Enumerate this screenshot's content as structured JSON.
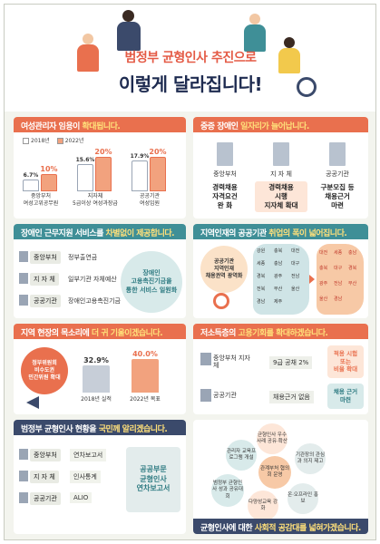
{
  "title": {
    "line1": "범정부 균형인사 추진으로",
    "line2": "이렇게 달라집니다!"
  },
  "women_managers": {
    "heading_pre": "여성관리자 임용이 ",
    "heading_hl": "확대됩니다.",
    "legend_2018": "2018년",
    "legend_2022": "2022년",
    "chart_data": {
      "type": "bar",
      "categories": [
        "중앙부처 여성고위공무원",
        "지자체 5급이상 여성과장급",
        "공공기관 여성임원"
      ],
      "series": [
        {
          "name": "2018년",
          "values": [
            6.7,
            15.6,
            17.9
          ]
        },
        {
          "name": "2022년",
          "values": [
            10,
            20,
            20
          ]
        }
      ],
      "labels_2018": [
        "6.7%",
        "15.6%",
        "17.9%"
      ],
      "labels_2022": [
        "10%",
        "20%",
        "20%"
      ]
    },
    "cat_lines": [
      [
        "중앙부처",
        "여성고위공무원"
      ],
      [
        "지자체",
        "5급이상 여성과장급"
      ],
      [
        "공공기관",
        "여성임원"
      ]
    ]
  },
  "disabled_jobs": {
    "heading_pre": "중증 장애인 ",
    "heading_hl": "일자리가 늘어납니다.",
    "cards": [
      {
        "name": "중앙부처",
        "lines": [
          "경력채용",
          "자격요건",
          "완 화"
        ]
      },
      {
        "name": "지 자 체",
        "lines": [
          "경력채용",
          "시행",
          "지자체 확대"
        ]
      },
      {
        "name": "공공기관",
        "lines": [
          "구분모집 등",
          "채용근거",
          "마련"
        ]
      }
    ]
  },
  "disabled_support": {
    "heading_pre": "장애인 근무지원 서비스를 ",
    "heading_hl": "차별없이 제공합니다.",
    "rows": [
      {
        "org": "중앙부처",
        "text": "정부출연금"
      },
      {
        "org": "지 자 체",
        "text": "일부기관 자체예산"
      },
      {
        "org": "공공기관",
        "text": "장애인고용촉진기금"
      }
    ],
    "result": [
      "장애인",
      "고용촉진기금을",
      "통한 서비스 일원화"
    ]
  },
  "local_talent": {
    "heading_pre": "지역인재의 공공기관 ",
    "heading_hl": "취업의 폭이 넓어집니다.",
    "badge": [
      "공공기관",
      "지역인재",
      "채용권역 광역화"
    ],
    "regions_left": [
      "강원",
      "충북",
      "대전",
      "세종",
      "충남",
      "대구",
      "경북",
      "광주",
      "전남",
      "전북",
      "부산",
      "울산",
      "경남",
      "제주"
    ],
    "regions_right": [
      "대전",
      "세종",
      "충남",
      "충북",
      "대구",
      "경북",
      "광주",
      "전남",
      "부산",
      "울산",
      "경남"
    ]
  },
  "local_voice": {
    "heading_pre": "지역 현장의 목소리에 ",
    "heading_hl": "더 귀 기울이겠습니다.",
    "badge": [
      "정부위원회",
      "비수도권",
      "민간위원 확대"
    ],
    "chart_data": {
      "type": "bar",
      "categories": [
        "2018년 실적",
        "2022년 목표"
      ],
      "values": [
        32.9,
        40.0
      ],
      "labels": [
        "32.9%",
        "40.0%"
      ]
    }
  },
  "low_income": {
    "heading_pre": "저소득층의 ",
    "heading_hl": "고용기회를 확대하겠습니다.",
    "row1": {
      "org": "중앙부처 지자체",
      "mid": "9급 공채 2%",
      "result": [
        "적용 시험",
        "또는",
        "비율 확대"
      ]
    },
    "row2": {
      "org": "공공기관",
      "mid": "채용근거 없음",
      "result": [
        "채용 근거",
        "마련"
      ]
    }
  },
  "publicity": {
    "heading_pre": "범정부 균형인사 현황을 ",
    "heading_hl": "국민께 알리겠습니다.",
    "rows": [
      {
        "org": "중앙부처",
        "text": "연차보고서"
      },
      {
        "org": "지 자 체",
        "text": "인사통계"
      },
      {
        "org": "공공기관",
        "text": "ALIO"
      }
    ],
    "result": [
      "공공부문",
      "균형인사",
      "연차보고서"
    ]
  },
  "consensus": {
    "heading_pre": "균형인사에 대한 ",
    "heading_hl": "사회적 공감대를 넓혀가겠습니다.",
    "bubbles": [
      "균형인사 우수사례 공유·확산",
      "관리자 교육프로그램 개설",
      "관계부처 협의회 운영",
      "기관장의 관심과 의지 제고",
      "범정부 균형인사 성과 공유대회",
      "다양성교육 강화",
      "온·오프라인 홍보"
    ]
  },
  "colors": {
    "orange": "#e9704e",
    "teal": "#3f8f97",
    "navy": "#3b4a6b",
    "highlight": "#ffe07a"
  }
}
